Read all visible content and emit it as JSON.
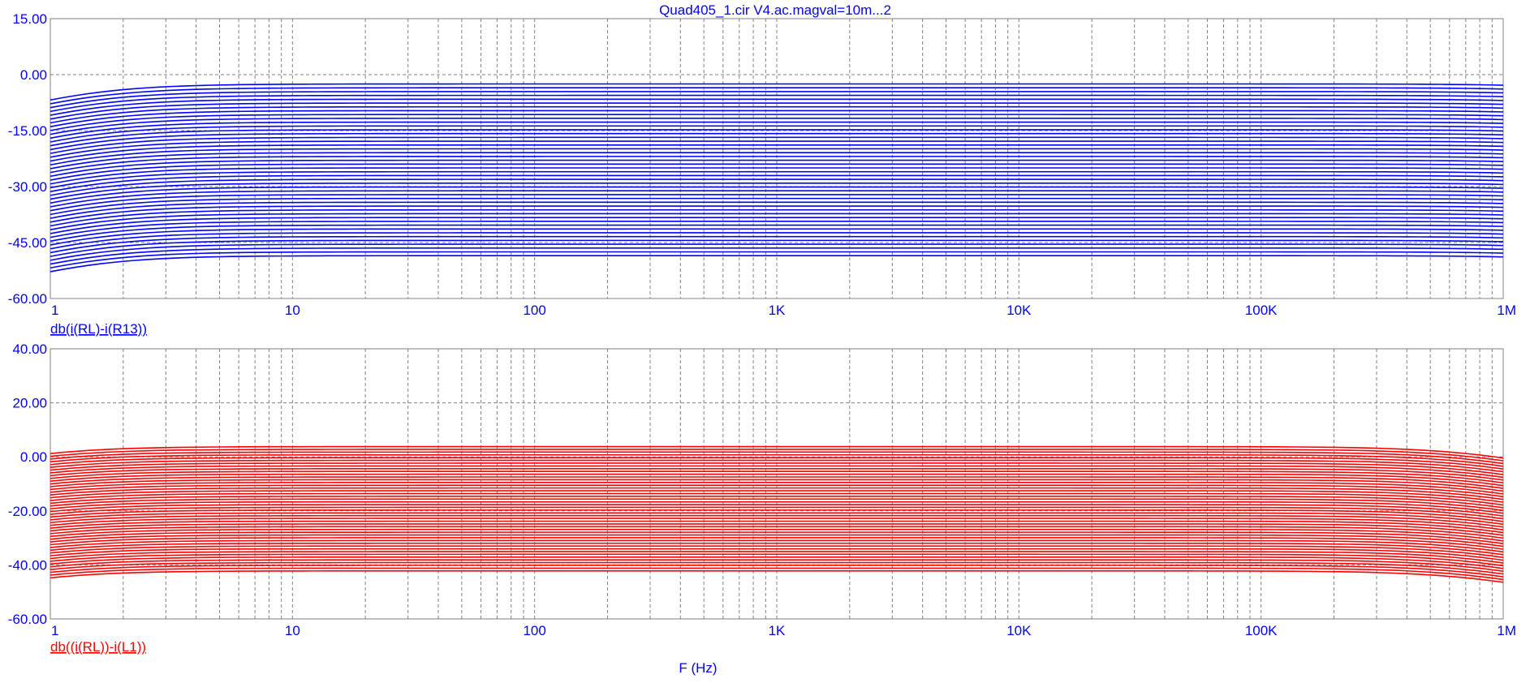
{
  "title": "Quad405_1.cir V4.ac.magval=10m...2",
  "xaxis_label": "F (Hz)",
  "colors": {
    "top": "#0000ff",
    "bottom": "#ff0000",
    "grid": "#808080",
    "axis": "#808080",
    "text": "#0000ff"
  },
  "chart_data": [
    {
      "type": "line",
      "trace_label": "db(i(RL)-i(R13))",
      "x_scale": "log",
      "xlim": [
        1,
        1000000
      ],
      "ylim": [
        -60,
        15
      ],
      "x_ticks": [
        {
          "value": 1,
          "label": "1"
        },
        {
          "value": 10,
          "label": "10"
        },
        {
          "value": 100,
          "label": "100"
        },
        {
          "value": 1000,
          "label": "1K"
        },
        {
          "value": 10000,
          "label": "10K"
        },
        {
          "value": 100000,
          "label": "100K"
        },
        {
          "value": 1000000,
          "label": "1M"
        }
      ],
      "y_ticks": [
        {
          "value": 15,
          "label": "15.00"
        },
        {
          "value": 0,
          "label": "0.00"
        },
        {
          "value": -15,
          "label": "-15.00"
        },
        {
          "value": -30,
          "label": "-30.00"
        },
        {
          "value": -45,
          "label": "-45.00"
        },
        {
          "value": -60,
          "label": "-60.00"
        }
      ],
      "grid": true,
      "family": {
        "count": 46,
        "param_start": 0.01,
        "param_end": 2,
        "plateau_top": -2.5,
        "plateau_bottom": -48.5,
        "low_corner_hz": 1.3,
        "high_corner_hz": 3500000,
        "at_1Hz_top": -8.2,
        "at_1Hz_bottom": -53.6,
        "at_1MHz_top": -9.0,
        "at_1MHz_bottom": -54.6
      }
    },
    {
      "type": "line",
      "trace_label": "db((i(RL))-i(L1))",
      "x_scale": "log",
      "xlim": [
        1,
        1000000
      ],
      "ylim": [
        -60,
        40
      ],
      "x_ticks": [
        {
          "value": 1,
          "label": "1"
        },
        {
          "value": 10,
          "label": "10"
        },
        {
          "value": 100,
          "label": "100"
        },
        {
          "value": 1000,
          "label": "1K"
        },
        {
          "value": 10000,
          "label": "10K"
        },
        {
          "value": 100000,
          "label": "100K"
        },
        {
          "value": 1000000,
          "label": "1M"
        }
      ],
      "y_ticks": [
        {
          "value": 40,
          "label": "40.00"
        },
        {
          "value": 20,
          "label": "20.00"
        },
        {
          "value": 0,
          "label": "0.00"
        },
        {
          "value": -20,
          "label": "-20.00"
        },
        {
          "value": -40,
          "label": "-40.00"
        },
        {
          "value": -60,
          "label": "-60.00"
        }
      ],
      "grid": true,
      "family": {
        "count": 46,
        "param_start": 0.01,
        "param_end": 2,
        "plateau_top": 3.8,
        "plateau_bottom": -42.2,
        "low_corner_hz": 0.9,
        "high_corner_hz": 780000,
        "at_1Hz_top": -1.8,
        "at_1Hz_bottom": -48.0,
        "at_1MHz_top": -4.2,
        "at_1MHz_bottom": -50.5
      }
    }
  ]
}
